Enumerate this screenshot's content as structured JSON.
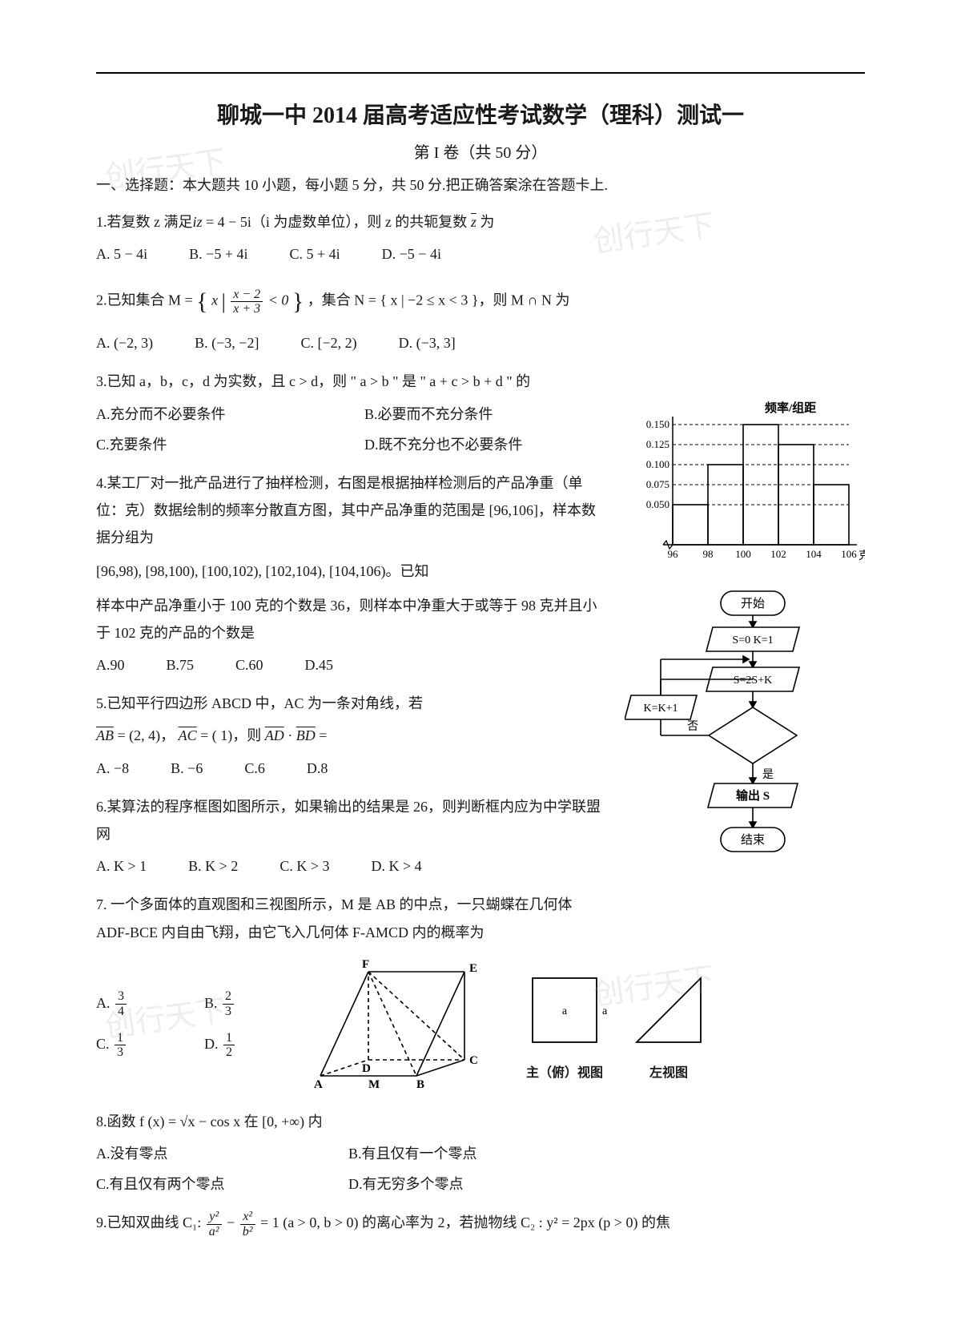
{
  "watermark_text": "创行天下",
  "title": "聊城一中 2014 届高考适应性考试数学（理科）测试一",
  "subtitle": "第 I 卷（共 50 分）",
  "section_head": "一、选择题：本大题共 10 小题，每小题 5 分，共 50 分.把正确答案涂在答题卡上.",
  "q1": {
    "text_1": "1.若复数 z 满足",
    "text_2": " = 4 − 5i（i 为虚数单位），则 z 的共轭复数 ",
    "text_3": " 为",
    "eq_lhs": "iz",
    "conj": "z̄",
    "opts": {
      "A": "A.  5 − 4i",
      "B": "B.  −5 + 4i",
      "C": "C.  5 + 4i",
      "D": "D.  −5 − 4i"
    }
  },
  "q2": {
    "text_1": "2.已知集合 M = ",
    "text_2": "，集合 N = { x | −2 ≤ x < 3 }，则 M ∩ N 为",
    "set_inner": "x | (x−2)/(x+3) < 0",
    "frac_num": "x − 2",
    "frac_den": "x + 3",
    "opts": {
      "A": "A.  (−2, 3)",
      "B": "B.  (−3, −2]",
      "C": "C.  [−2, 2)",
      "D": "D.  (−3, 3]"
    }
  },
  "q3": {
    "text": "3.已知 a，b，c，d 为实数，且 c > d，则 \" a > b \" 是 \" a + c > b + d \" 的",
    "opts": {
      "A": "A.充分而不必要条件",
      "B": "B.必要而不充分条件",
      "C": "C.充要条件",
      "D": "D.既不充分也不必要条件"
    }
  },
  "q4": {
    "p1": "4.某工厂对一批产品进行了抽样检测，右图是根据抽样检测后的产品净重（单位：克）数据绘制的频率分散直方图，其中产品净重的范围是 [96,106]，样本数据分组为",
    "p2": "[96,98), [98,100), [100,102), [102,104), [104,106)。已知",
    "p3": "样本中产品净重小于 100 克的个数是 36，则样本中净重大于或等于 98 克并且小于 102 克的产品的个数是",
    "opts": {
      "A": "A.90",
      "B": "B.75",
      "C": "C.60",
      "D": "D.45"
    }
  },
  "q5": {
    "p1": "5.已知平行四边形 ABCD 中，AC 为一条对角线，若",
    "p2_a": "AB",
    "p2_av": " = (2, 4)，",
    "p2_b": "AC",
    "p2_bv": " = (  1)，则 ",
    "p2_c": "AD",
    "p2_cv": " · ",
    "p2_d": "BD",
    "p2_dv": " =",
    "opts": {
      "A": "A.  −8",
      "B": "B.  −6",
      "C": "C.6",
      "D": "D.8"
    }
  },
  "q6": {
    "p1": "6.某算法的程序框图如图所示，如果输出的结果是 26，则判断框内应为中学联盟网",
    "opts": {
      "A": "A.  K > 1",
      "B": "B.  K > 2",
      "C": "C.  K > 3",
      "D": "D.  K > 4"
    }
  },
  "q7": {
    "p1": "7. 一个多面体的直观图和三视图所示，M 是 AB 的中点，一只蝴蝶在几何体 ADF-BCE 内自由飞翔，由它飞入几何体 F-AMCD 内的概率为",
    "opts": {
      "A": "A.",
      "A_num": "3",
      "A_den": "4",
      "B": "B.",
      "B_num": "2",
      "B_den": "3",
      "C": "C.",
      "C_num": "1",
      "C_den": "3",
      "D": "D.",
      "D_num": "1",
      "D_den": "2"
    },
    "view_main": "主（俯）视图",
    "view_left": "左视图"
  },
  "q8": {
    "p1": "8.函数 f (x) = √x − cos x 在 [0, +∞) 内",
    "opts": {
      "A": "A.没有零点",
      "B": "B.有且仅有一个零点",
      "C": "C.有且仅有两个零点",
      "D": "D.有无穷多个零点"
    }
  },
  "q9": {
    "p1_a": "9.已知双曲线 C₁: ",
    "p1_b": " − ",
    "p1_c": " = 1 (a > 0,  b > 0) 的离心率为 2，若抛物线 C₂ : y² = 2px (p > 0) 的焦",
    "f1_num": "y²",
    "f1_den": "a²",
    "f2_num": "x²",
    "f2_den": "b²"
  },
  "histogram": {
    "ylabel": "频率/组距",
    "xlabel_unit": "克",
    "y_ticks": [
      "0.050",
      "0.075",
      "0.100",
      "0.125",
      "0.150"
    ],
    "x_ticks": [
      "96",
      "98",
      "100",
      "102",
      "104",
      "106"
    ],
    "bars": [
      0.05,
      0.1,
      0.15,
      0.125,
      0.075
    ],
    "stroke": "#000000",
    "bg": "#ffffff"
  },
  "flowchart": {
    "start": "开始",
    "init": "S=0  K=1",
    "step": "S=2S+K",
    "inc": "K=K+1",
    "no": "否",
    "yes": "是",
    "out": "输出 S",
    "end": "结束",
    "stroke": "#000000"
  },
  "solid": {
    "labels": {
      "A": "A",
      "B": "B",
      "C": "C",
      "D": "D",
      "E": "E",
      "F": "F",
      "M": "M"
    },
    "side_label": "a"
  },
  "colors": {
    "text": "#1a1a1a",
    "rule": "#000000",
    "watermark": "rgba(160,160,160,0.18)"
  }
}
